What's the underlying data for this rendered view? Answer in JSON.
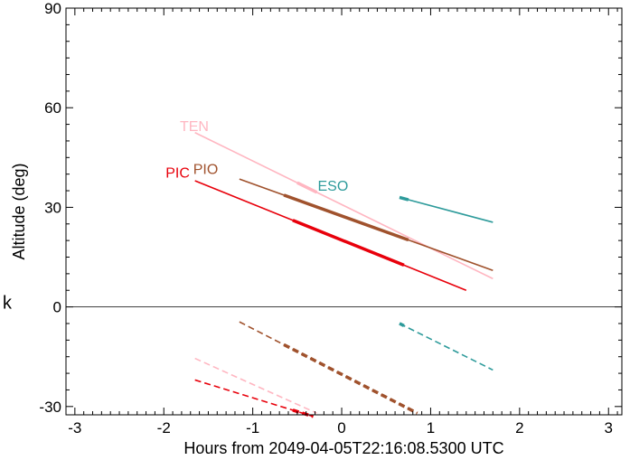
{
  "chart_data": {
    "type": "line",
    "title": "",
    "xlabel": "Hours from 2049-04-05T22:16:08.5300 UTC",
    "ylabel": "Altitude (deg)",
    "side_label": "k",
    "xlim": [
      -3.1,
      3.15
    ],
    "ylim": [
      -32.5,
      90
    ],
    "x_ticks": [
      -3,
      -2,
      -1,
      0,
      1,
      2,
      3
    ],
    "x_tick_labels": [
      "-3",
      "-2",
      "-1",
      "0",
      "1",
      "2",
      "3"
    ],
    "y_ticks": [
      -30,
      0,
      30,
      60,
      90
    ],
    "y_tick_labels": [
      "-30",
      "0",
      "30",
      "60",
      "90"
    ],
    "grid": false,
    "series": [
      {
        "name": "TEN",
        "color": "#ffb6c1",
        "x": [
          -1.65,
          1.7
        ],
        "y": [
          52.5,
          8.5
        ],
        "thick_x": [
          -0.5,
          -0.28
        ],
        "label_x": -1.82,
        "label_y": 53,
        "below_horizon": {
          "x": [
            -1.65,
            -0.28
          ],
          "y": [
            -15.5,
            -32
          ]
        }
      },
      {
        "name": "PIO",
        "color": "#a0522d",
        "x": [
          -1.15,
          1.7
        ],
        "y": [
          38.5,
          11
        ],
        "thick_x": [
          -0.65,
          0.75
        ],
        "label_x": -1.67,
        "label_y": 40,
        "below_horizon": {
          "x": [
            -1.15,
            0.85
          ],
          "y": [
            -4.5,
            -32
          ]
        },
        "below_thick_x": [
          -0.65,
          0.85
        ]
      },
      {
        "name": "PIC",
        "color": "#e8000b",
        "x": [
          -1.65,
          1.4
        ],
        "y": [
          38,
          5
        ],
        "thick_x": [
          -0.55,
          0.7
        ],
        "label_x": -1.98,
        "label_y": 39,
        "below_horizon": {
          "x": [
            -1.65,
            -0.32
          ],
          "y": [
            -22,
            -33
          ]
        },
        "below_thick_x": [
          -0.55,
          -0.32
        ]
      },
      {
        "name": "ESO",
        "color": "#2e9b9b",
        "x": [
          0.65,
          1.7
        ],
        "y": [
          33,
          25.5
        ],
        "thick_x": [
          0.65,
          0.75
        ],
        "label_x": -0.27,
        "label_y": 35,
        "below_horizon": {
          "x": [
            0.65,
            1.7
          ],
          "y": [
            -5,
            -19
          ]
        },
        "below_thick_x": [
          0.65,
          0.7
        ]
      }
    ]
  }
}
